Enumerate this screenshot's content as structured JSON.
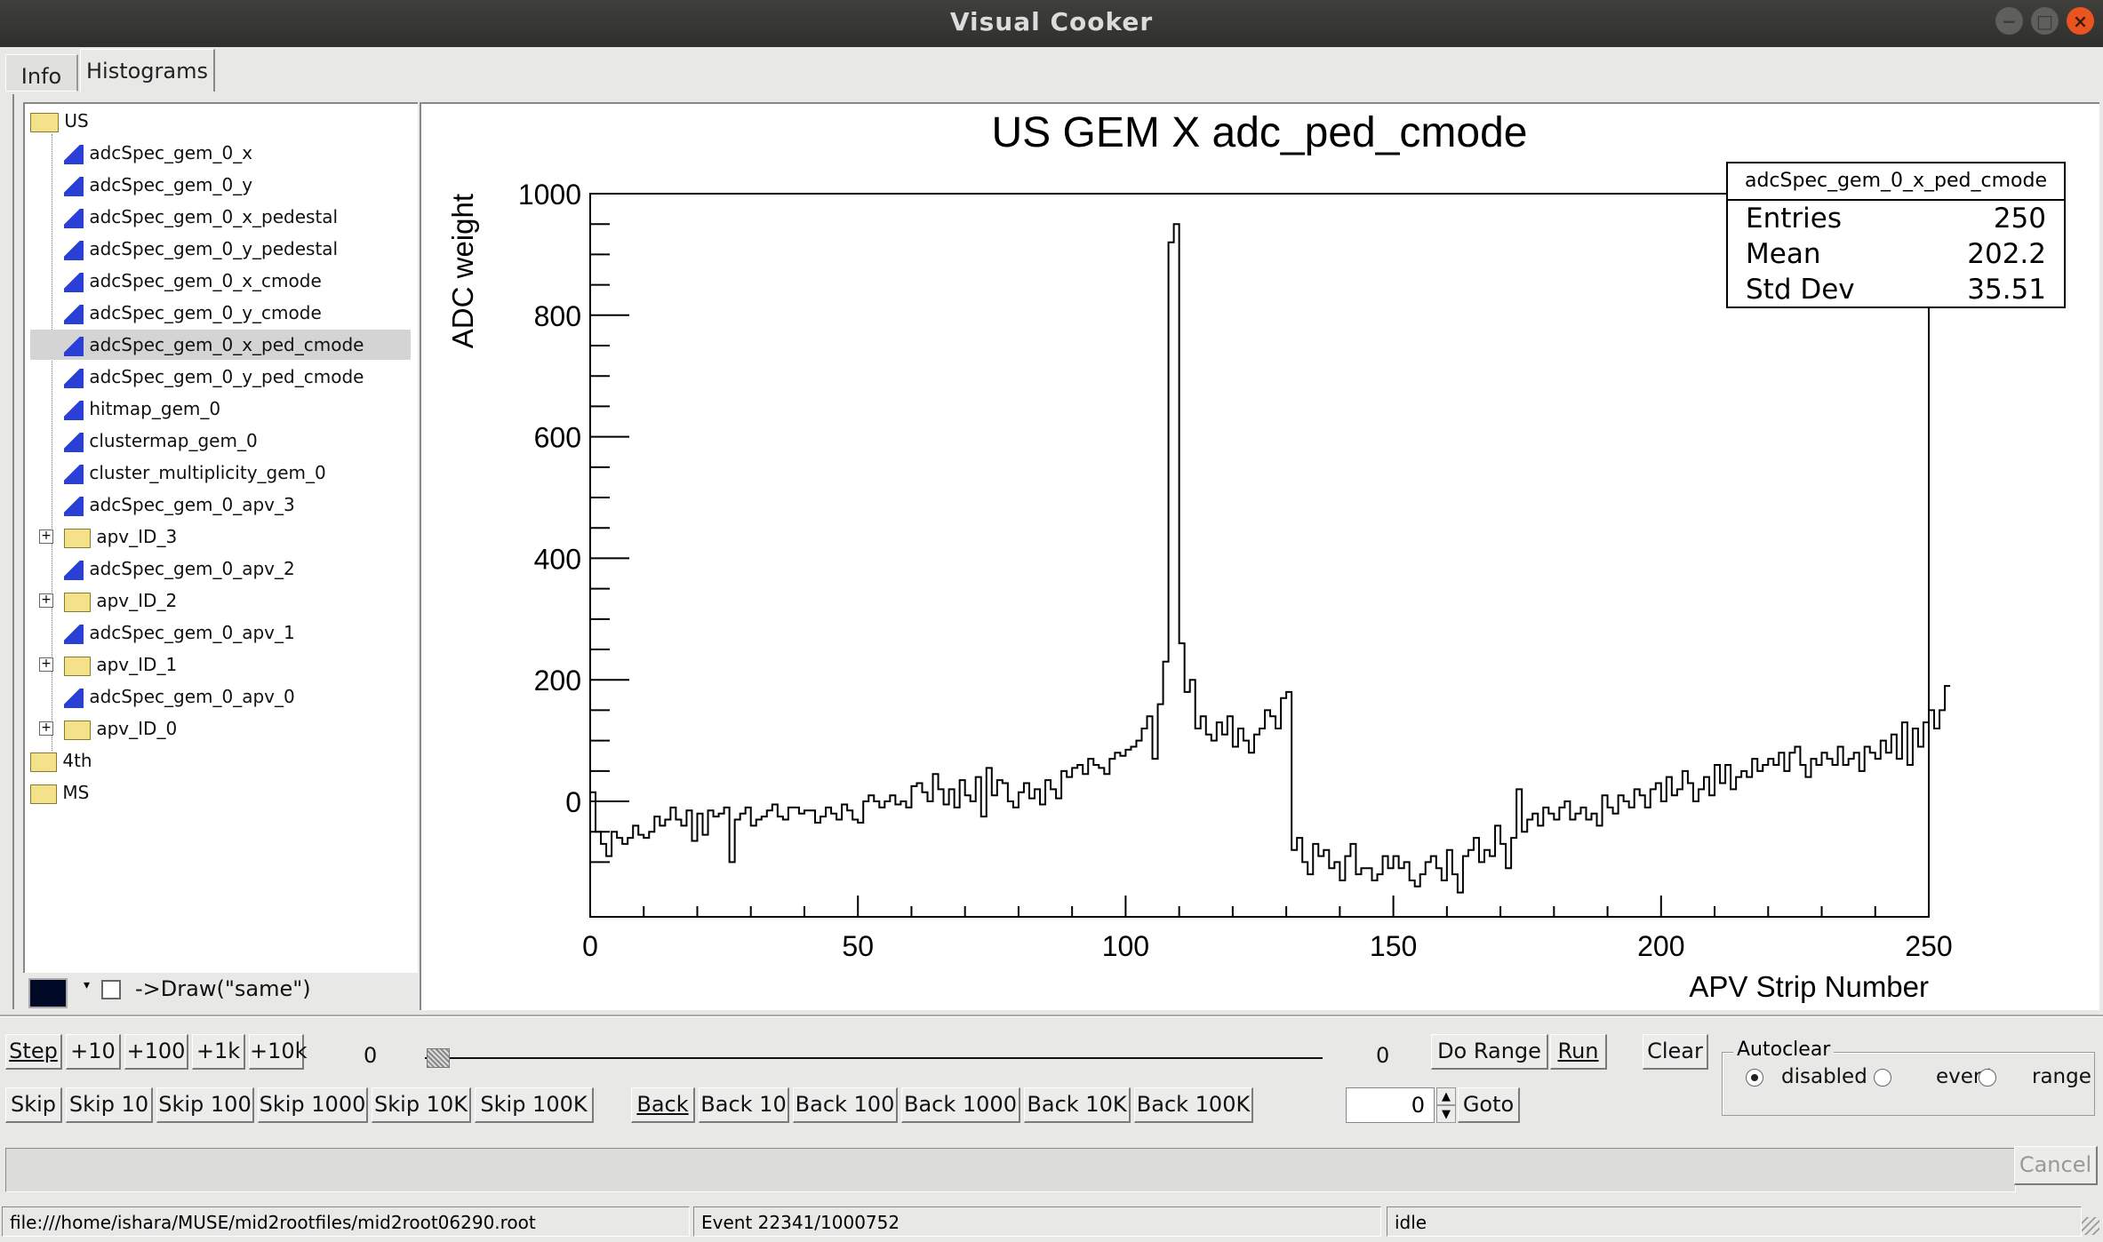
{
  "window": {
    "title": "Visual Cooker",
    "controls": {
      "minimize": "minimize-icon",
      "maximize": "maximize-icon",
      "close": "close-icon",
      "close_color": "#e95420"
    }
  },
  "tabs": [
    {
      "label": "Info",
      "active": false
    },
    {
      "label": "Histograms",
      "active": true
    }
  ],
  "tree": {
    "root": "US",
    "items": [
      "adcSpec_gem_0_x",
      "adcSpec_gem_0_y",
      "adcSpec_gem_0_x_pedestal",
      "adcSpec_gem_0_y_pedestal",
      "adcSpec_gem_0_x_cmode",
      "adcSpec_gem_0_y_cmode",
      "adcSpec_gem_0_x_ped_cmode",
      "adcSpec_gem_0_y_ped_cmode",
      "hitmap_gem_0",
      "clustermap_gem_0",
      "cluster_multiplicity_gem_0",
      "adcSpec_gem_0_apv_3",
      "apv_ID_3",
      "adcSpec_gem_0_apv_2",
      "apv_ID_2",
      "adcSpec_gem_0_apv_1",
      "apv_ID_1",
      "adcSpec_gem_0_apv_0",
      "apv_ID_0"
    ],
    "selected": "adcSpec_gem_0_x_ped_cmode",
    "other_roots": [
      "4th",
      "MS"
    ]
  },
  "draw_option": {
    "label": "->Draw(\"same\")",
    "checked": false,
    "color": "#000a26"
  },
  "chart_data": {
    "type": "line",
    "title": "US GEM X adc_ped_cmode",
    "xlabel": "APV Strip Number",
    "ylabel": "ADC weight",
    "xlim": [
      0,
      250
    ],
    "ylim": [
      -190,
      1000
    ],
    "x_ticks": [
      "0",
      "50",
      "100",
      "150",
      "200",
      "250"
    ],
    "y_ticks": [
      "0",
      "200",
      "400",
      "600",
      "800",
      "1000"
    ],
    "legend_position": "top-right",
    "stats": {
      "name": "adcSpec_gem_0_x_ped_cmode",
      "entries_label": "Entries",
      "entries": "250",
      "mean_label": "Mean",
      "mean": "202.2",
      "std_label": "Std Dev",
      "std": "35.51"
    },
    "bin_width": 1,
    "values": [
      15,
      -50,
      -70,
      -90,
      -50,
      -60,
      -70,
      -60,
      -40,
      -55,
      -60,
      -50,
      -25,
      -40,
      -30,
      -10,
      -30,
      -40,
      -15,
      -65,
      -20,
      -55,
      -15,
      -25,
      -20,
      -10,
      -100,
      -30,
      -20,
      -10,
      -40,
      -30,
      -25,
      -15,
      -5,
      -25,
      -30,
      -10,
      -10,
      -20,
      -15,
      -15,
      -35,
      -25,
      -10,
      -20,
      -30,
      -5,
      -15,
      -30,
      -35,
      0,
      10,
      0,
      -10,
      0,
      10,
      -5,
      0,
      -10,
      25,
      30,
      15,
      0,
      45,
      20,
      -5,
      20,
      -10,
      35,
      10,
      0,
      40,
      -25,
      55,
      10,
      35,
      30,
      0,
      -10,
      15,
      30,
      5,
      20,
      -5,
      35,
      20,
      5,
      50,
      40,
      55,
      60,
      45,
      70,
      60,
      55,
      45,
      70,
      80,
      75,
      85,
      90,
      100,
      120,
      140,
      70,
      160,
      230,
      920,
      950,
      260,
      180,
      200,
      120,
      140,
      110,
      100,
      130,
      110,
      140,
      90,
      120,
      100,
      80,
      110,
      120,
      150,
      140,
      120,
      170,
      180,
      -80,
      -60,
      -100,
      -120,
      -70,
      -90,
      -80,
      -110,
      -100,
      -130,
      -90,
      -70,
      -120,
      -110,
      -110,
      -130,
      -120,
      -90,
      -110,
      -90,
      -110,
      -100,
      -130,
      -140,
      -120,
      -100,
      -90,
      -110,
      -130,
      -80,
      -120,
      -150,
      -90,
      -80,
      -60,
      -100,
      -80,
      -90,
      -40,
      -70,
      -110,
      -60,
      20,
      -50,
      -30,
      -20,
      -40,
      -10,
      -20,
      -30,
      -10,
      0,
      -30,
      -20,
      -10,
      -30,
      -20,
      -40,
      10,
      -10,
      -20,
      10,
      0,
      -10,
      20,
      10,
      -10,
      20,
      30,
      0,
      40,
      10,
      20,
      50,
      30,
      0,
      20,
      40,
      10,
      60,
      30,
      60,
      20,
      40,
      50,
      40,
      70,
      50,
      60,
      70,
      60,
      80,
      50,
      80,
      90,
      60,
      40,
      70,
      60,
      80,
      70,
      60,
      90,
      60,
      70,
      80,
      50,
      90,
      80,
      70,
      100,
      80,
      110,
      70,
      130,
      60,
      120,
      90,
      130,
      150,
      120,
      150,
      190
    ],
    "colors": {
      "line": "#000000",
      "axis": "#000000"
    }
  },
  "controls": {
    "row1": [
      "Step",
      "+10",
      "+100",
      "+1k",
      "+10k"
    ],
    "slider_left_value": "0",
    "slider_right_value": "0",
    "slider_level": 0,
    "do_range": "Do Range",
    "run": "Run",
    "clear": "Clear",
    "autoclear": {
      "title": "Autoclear",
      "options": [
        "disabled",
        "event",
        "range"
      ],
      "selected": "disabled"
    },
    "skip": [
      "Skip",
      "Skip 10",
      "Skip 100",
      "Skip 1000",
      "Skip 10K",
      "Skip 100K"
    ],
    "back": [
      "Back",
      "Back 10",
      "Back 100",
      "Back 1000",
      "Back 10K",
      "Back 100K"
    ],
    "goto_value": "0",
    "goto": "Goto",
    "cancel": "Cancel"
  },
  "statusbar": {
    "file": "file:///home/ishara/MUSE/mid2rootfiles/mid2root06290.root",
    "event": "Event 22341/1000752",
    "state": "idle"
  }
}
